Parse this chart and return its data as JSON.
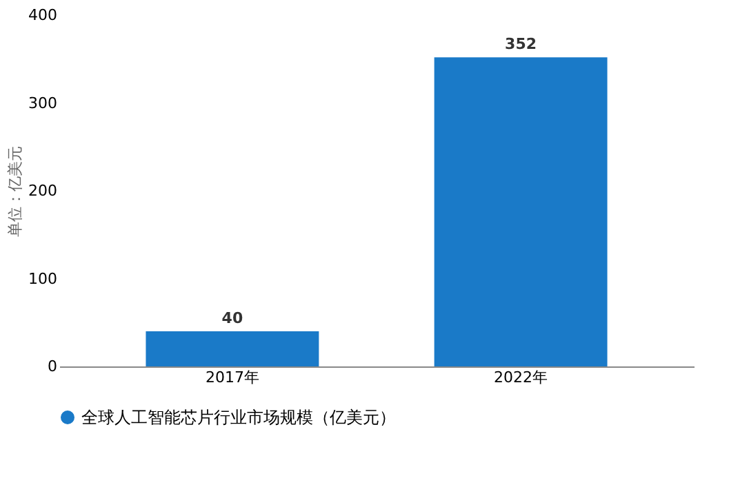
{
  "chart_data": {
    "type": "bar",
    "ylabel": "单位：亿美元",
    "categories": [
      "2017年",
      "2022年"
    ],
    "series": [
      {
        "name": "全球人工智能芯片行业市场规模（亿美元）",
        "color": "#1a7ac8",
        "values": [
          40,
          352
        ]
      }
    ],
    "ylim": [
      0,
      400
    ],
    "yticks": [
      0,
      100,
      200,
      300,
      400
    ],
    "grid": false,
    "legend": "bottom",
    "data_labels": true
  }
}
